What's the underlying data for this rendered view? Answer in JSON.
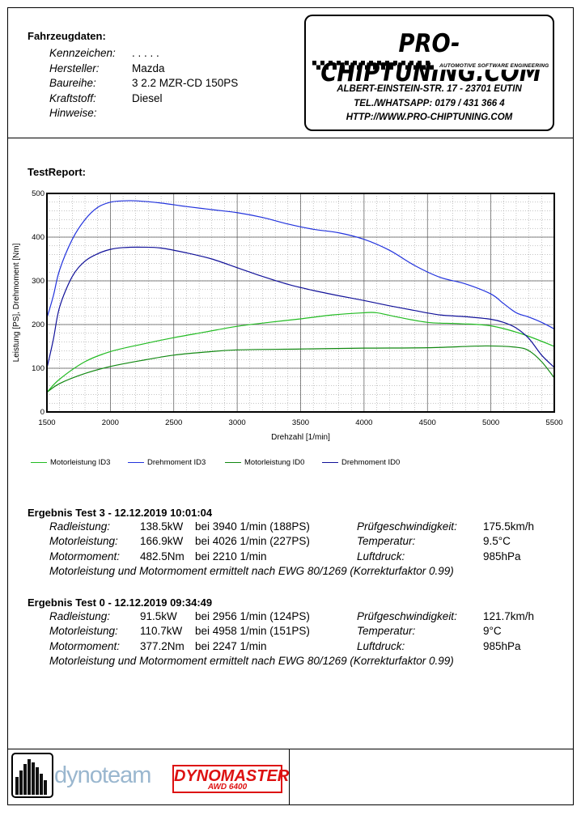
{
  "vehicle": {
    "title": "Fahrzeugdaten:",
    "fields": [
      {
        "label": "Kennzeichen:",
        "value": ". . . . ."
      },
      {
        "label": "Hersteller:",
        "value": "Mazda"
      },
      {
        "label": "Baureihe:",
        "value": "3 2.2 MZR-CD 150PS"
      },
      {
        "label": "Kraftstoff:",
        "value": "Diesel"
      },
      {
        "label": "Hinweise:",
        "value": ""
      }
    ]
  },
  "logo": {
    "name": "PRO-CHIPTUNING.COM",
    "tagline": "AUTOMOTIVE SOFTWARE ENGINEERING",
    "address": "ALBERT-EINSTEIN-STR. 17 - 23701 EUTIN",
    "phone": "TEL./WHATSAPP: 0179 / 431 366 4",
    "url": "HTTP://WWW.PRO-CHIPTUNING.COM"
  },
  "report": {
    "title": "TestReport:"
  },
  "chart_data": {
    "type": "line",
    "xlabel": "Drehzahl [1/min]",
    "ylabel": "Leistung [PS], Drehmoment [Nm]",
    "xlim": [
      1500,
      5500
    ],
    "ylim": [
      0,
      500
    ],
    "xticks": [
      1500,
      2000,
      2500,
      3000,
      3500,
      4000,
      4500,
      5000,
      5500
    ],
    "yticks": [
      0,
      100,
      200,
      300,
      400,
      500
    ],
    "grid": true,
    "legend_position": "bottom",
    "series": [
      {
        "name": "Motorleistung ID3",
        "color": "#22bb22",
        "x": [
          1500,
          1600,
          1800,
          2000,
          2250,
          2500,
          2750,
          3000,
          3250,
          3500,
          3750,
          4000,
          4100,
          4250,
          4500,
          4750,
          5000,
          5250,
          5500
        ],
        "y": [
          45,
          75,
          115,
          138,
          155,
          170,
          183,
          196,
          205,
          213,
          222,
          227,
          227,
          218,
          205,
          202,
          197,
          178,
          150
        ]
      },
      {
        "name": "Drehmoment ID3",
        "color": "#2233dd",
        "x": [
          1500,
          1550,
          1600,
          1700,
          1800,
          1900,
          2000,
          2100,
          2210,
          2400,
          2600,
          2800,
          3000,
          3200,
          3400,
          3600,
          3800,
          4000,
          4200,
          4400,
          4600,
          4800,
          5000,
          5100,
          5200,
          5300,
          5400,
          5500
        ],
        "y": [
          215,
          265,
          325,
          395,
          440,
          468,
          480,
          483,
          483,
          478,
          470,
          463,
          456,
          445,
          430,
          418,
          410,
          395,
          370,
          335,
          308,
          293,
          270,
          248,
          227,
          217,
          205,
          190
        ]
      },
      {
        "name": "Motorleistung ID0",
        "color": "#118811",
        "x": [
          1500,
          1600,
          1800,
          2000,
          2250,
          2500,
          2750,
          3000,
          3500,
          4000,
          4500,
          4958,
          5200,
          5300,
          5400,
          5500
        ],
        "y": [
          45,
          65,
          88,
          104,
          118,
          130,
          137,
          142,
          144,
          146,
          147,
          151,
          148,
          140,
          115,
          78
        ]
      },
      {
        "name": "Drehmoment ID0",
        "color": "#111199",
        "x": [
          1500,
          1550,
          1600,
          1700,
          1800,
          1900,
          2000,
          2100,
          2247,
          2400,
          2600,
          2800,
          3000,
          3200,
          3400,
          3600,
          3800,
          4000,
          4200,
          4400,
          4600,
          4800,
          5000,
          5100,
          5200,
          5300,
          5400,
          5500
        ],
        "y": [
          100,
          165,
          240,
          310,
          345,
          362,
          372,
          376,
          377,
          375,
          364,
          350,
          330,
          310,
          292,
          278,
          266,
          255,
          243,
          232,
          222,
          218,
          212,
          205,
          192,
          168,
          130,
          102
        ]
      }
    ]
  },
  "results": [
    {
      "title": "Ergebnis Test 3 - 12.12.2019 10:01:04",
      "rows": [
        {
          "label": "Radleistung:",
          "value": "138.5kW",
          "detail": "bei 3940 1/min (188PS)",
          "label2": "Prüfgeschwindigkeit:",
          "value2": "175.5km/h"
        },
        {
          "label": "Motorleistung:",
          "value": "166.9kW",
          "detail": "bei 4026 1/min (227PS)",
          "label2": "Temperatur:",
          "value2": "9.5°C"
        },
        {
          "label": "Motormoment:",
          "value": "482.5Nm",
          "detail": "bei 2210 1/min",
          "label2": "Luftdruck:",
          "value2": "985hPa"
        }
      ],
      "note": "Motorleistung und Motormoment ermittelt nach EWG 80/1269 (Korrekturfaktor 0.99)"
    },
    {
      "title": "Ergebnis Test 0 - 12.12.2019 09:34:49",
      "rows": [
        {
          "label": "Radleistung:",
          "value": "91.5kW",
          "detail": "bei 2956 1/min (124PS)",
          "label2": "Prüfgeschwindigkeit:",
          "value2": "121.7km/h"
        },
        {
          "label": "Motorleistung:",
          "value": "110.7kW",
          "detail": "bei 4958 1/min (151PS)",
          "label2": "Temperatur:",
          "value2": "9°C"
        },
        {
          "label": "Motormoment:",
          "value": "377.2Nm",
          "detail": "bei 2247 1/min",
          "label2": "Luftdruck:",
          "value2": "985hPa"
        }
      ],
      "note": "Motorleistung und Motormoment ermittelt nach EWG 80/1269 (Korrekturfaktor 0.99)"
    }
  ],
  "footer": {
    "dynoteam": "dynoteam",
    "dynomaster": "DYNOMASTER",
    "dynomaster_sub": "AWD 6400"
  }
}
